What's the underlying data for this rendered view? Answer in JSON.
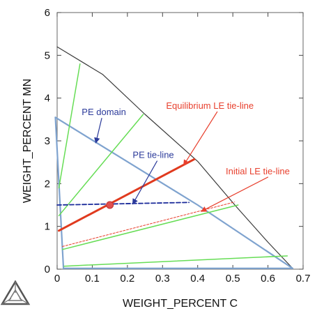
{
  "chart_data": {
    "type": "line",
    "title": "",
    "xlabel": "WEIGHT_PERCENT C",
    "ylabel": "WEIGHT_PERCENT MN",
    "xlim": [
      0,
      0.7
    ],
    "ylim": [
      0,
      6
    ],
    "x_ticks": [
      "0",
      "0.1",
      "0.2",
      "0.3",
      "0.4",
      "0.5",
      "0.6",
      "0.7"
    ],
    "y_ticks": [
      "0",
      "1",
      "2",
      "3",
      "4",
      "5",
      "6"
    ],
    "grid": false,
    "colors": {
      "phase_boundary": "#3a3a3a",
      "pe_domain": "#7fa3cf",
      "tie_lines": "#66dd55",
      "equilibrium_le": "#e03a1e",
      "initial_le": "#e8402e",
      "pe_tie_line": "#1a2a9a",
      "point": "#e05050",
      "annotation_red": "#e8402e",
      "annotation_blue": "#2b3a9a"
    },
    "series": [
      {
        "role": "phase_boundary",
        "points": [
          [
            0,
            5.2
          ],
          [
            0.13,
            4.55
          ],
          [
            0.25,
            3.62
          ],
          [
            0.4,
            2.52
          ],
          [
            0.51,
            1.46
          ],
          [
            0.6,
            0.63
          ],
          [
            0.67,
            0.02
          ]
        ]
      },
      {
        "role": "pe_domain_upper",
        "points": [
          [
            -0.005,
            3.55
          ],
          [
            0.4,
            1.5
          ],
          [
            0.67,
            0.02
          ]
        ]
      },
      {
        "role": "pe_domain_lower",
        "points": [
          [
            0.018,
            0.02
          ],
          [
            0.67,
            0.02
          ]
        ]
      },
      {
        "role": "pe_domain_left",
        "points": [
          [
            -0.005,
            3.55
          ],
          [
            0.018,
            0.02
          ]
        ]
      },
      {
        "role": "tie_line",
        "points": [
          [
            0.005,
            1.9
          ],
          [
            0.065,
            4.8
          ]
        ]
      },
      {
        "role": "tie_line",
        "points": [
          [
            0.005,
            1.25
          ],
          [
            0.245,
            3.62
          ]
        ]
      },
      {
        "role": "tie_line",
        "points": [
          [
            0.015,
            0.46
          ],
          [
            0.515,
            1.5
          ]
        ]
      },
      {
        "role": "tie_line",
        "points": [
          [
            0.02,
            0.07
          ],
          [
            0.655,
            0.31
          ]
        ]
      },
      {
        "role": "equilibrium_le_tie_line",
        "points": [
          [
            0.005,
            0.9
          ],
          [
            0.39,
            2.57
          ]
        ]
      },
      {
        "role": "initial_le_tie_line",
        "points": [
          [
            0.015,
            0.53
          ],
          [
            0.505,
            1.57
          ]
        ]
      },
      {
        "role": "pe_tie_line",
        "points": [
          [
            0.0,
            1.5
          ],
          [
            0.375,
            1.56
          ]
        ]
      }
    ],
    "highlight_point": {
      "x": 0.15,
      "y": 1.5
    },
    "annotations": [
      {
        "text": "PE domain",
        "color_key": "annotation_blue",
        "x": 0.07,
        "y": 3.6,
        "arrow_to": [
          0.11,
          2.95
        ]
      },
      {
        "text": "Equilibrium LE tie-line",
        "color_key": "annotation_red",
        "x": 0.31,
        "y": 3.75,
        "arrow_to": [
          0.36,
          2.43
        ]
      },
      {
        "text": "PE tie-line",
        "color_key": "annotation_blue",
        "x": 0.215,
        "y": 2.6,
        "arrow_to": [
          0.215,
          1.52
        ]
      },
      {
        "text": "Initial LE tie-line",
        "color_key": "annotation_red",
        "x": 0.48,
        "y": 2.22,
        "arrow_to": [
          0.41,
          1.35
        ]
      }
    ]
  }
}
